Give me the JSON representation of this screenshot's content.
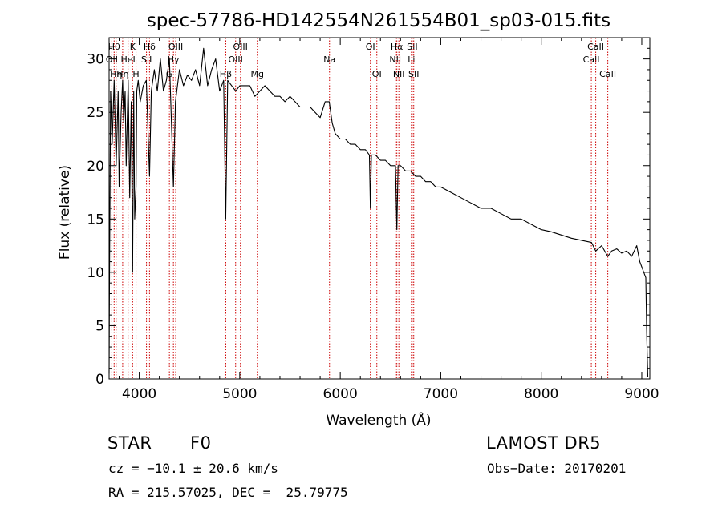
{
  "chart_data": {
    "type": "line",
    "title": "spec-57786-HD142554N261554B01_sp03-015.fits",
    "xlabel": "Wavelength (Å)",
    "ylabel": "Flux (relative)",
    "xlim": [
      3700,
      9080
    ],
    "ylim": [
      0,
      32
    ],
    "x_ticks": [
      4000,
      5000,
      6000,
      7000,
      8000,
      9000
    ],
    "y_ticks": [
      0,
      5,
      10,
      15,
      20,
      25,
      30
    ],
    "series": [
      {
        "color": "#000000",
        "x": [
          3700,
          3705,
          3715,
          3730,
          3750,
          3770,
          3790,
          3800,
          3820,
          3835,
          3845,
          3860,
          3870,
          3890,
          3905,
          3920,
          3934,
          3945,
          3955,
          3968,
          3975,
          3990,
          4010,
          4040,
          4070,
          4102,
          4120,
          4150,
          4180,
          4210,
          4240,
          4270,
          4300,
          4340,
          4360,
          4400,
          4440,
          4480,
          4520,
          4560,
          4600,
          4640,
          4680,
          4720,
          4760,
          4800,
          4840,
          4861,
          4880,
          4920,
          4960,
          5000,
          5050,
          5100,
          5150,
          5200,
          5250,
          5300,
          5350,
          5400,
          5450,
          5500,
          5550,
          5600,
          5650,
          5700,
          5750,
          5800,
          5850,
          5890,
          5920,
          5950,
          6000,
          6050,
          6100,
          6150,
          6200,
          6250,
          6290,
          6300,
          6310,
          6350,
          6400,
          6450,
          6500,
          6550,
          6563,
          6575,
          6600,
          6650,
          6700,
          6750,
          6800,
          6850,
          6900,
          6950,
          7000,
          7100,
          7200,
          7300,
          7400,
          7500,
          7600,
          7700,
          7800,
          7900,
          8000,
          8100,
          8200,
          8300,
          8400,
          8500,
          8542,
          8600,
          8662,
          8700,
          8750,
          8800,
          8850,
          8900,
          8950,
          8980,
          9000,
          9020,
          9040,
          9050,
          9060
        ],
        "y": [
          0.5,
          11,
          27,
          22,
          28,
          20,
          27,
          18,
          25,
          28,
          24,
          27,
          20,
          28,
          17,
          26,
          10,
          27,
          15,
          18,
          27,
          28,
          26,
          27.5,
          28,
          19,
          27,
          29,
          27,
          30,
          27,
          28,
          30,
          18,
          26,
          29,
          27.5,
          28.5,
          28,
          29,
          27.5,
          31,
          27.5,
          29,
          30,
          27,
          28,
          15,
          28,
          27.5,
          27,
          27.5,
          27.5,
          27.5,
          26.5,
          27,
          27.5,
          27,
          26.5,
          26.5,
          26,
          26.5,
          26,
          25.5,
          25.5,
          25.5,
          25,
          24.5,
          26,
          26,
          24,
          23,
          22.5,
          22.5,
          22,
          22,
          21.5,
          21.5,
          21,
          16,
          21,
          21,
          20.5,
          20.5,
          20,
          20,
          14,
          20,
          20,
          19.5,
          19.5,
          19,
          19,
          18.5,
          18.5,
          18,
          18,
          17.5,
          17,
          16.5,
          16,
          16,
          15.5,
          15,
          15,
          14.5,
          14,
          13.8,
          13.5,
          13.2,
          13,
          12.8,
          12,
          12.5,
          11.5,
          12,
          12.2,
          11.8,
          12,
          11.5,
          12.5,
          11,
          10.5,
          10,
          9.5,
          4,
          0.2
        ]
      }
    ],
    "lines": [
      {
        "x": 3727,
        "label": "OII",
        "row": 1
      },
      {
        "x": 3750,
        "label": "Hθ",
        "row": 0
      },
      {
        "x": 3770,
        "label": "Hη",
        "row": 2
      },
      {
        "x": 3835,
        "label": "Hη",
        "row": 2
      },
      {
        "x": 3889,
        "label": "HeI",
        "row": 1
      },
      {
        "x": 3934,
        "label": "K",
        "row": 0
      },
      {
        "x": 3968,
        "label": "H",
        "row": 2
      },
      {
        "x": 4072,
        "label": "SII",
        "row": 1
      },
      {
        "x": 4102,
        "label": "Hδ",
        "row": 0
      },
      {
        "x": 4300,
        "label": "G",
        "row": 2
      },
      {
        "x": 4340,
        "label": "Hγ",
        "row": 1
      },
      {
        "x": 4363,
        "label": "OIII",
        "row": 0
      },
      {
        "x": 4861,
        "label": "Hβ",
        "row": 2
      },
      {
        "x": 4959,
        "label": "OIII",
        "row": 1
      },
      {
        "x": 5007,
        "label": "OIII",
        "row": 0
      },
      {
        "x": 5175,
        "label": "Mg",
        "row": 2
      },
      {
        "x": 5893,
        "label": "Na",
        "row": 1
      },
      {
        "x": 6300,
        "label": "OI",
        "row": 0
      },
      {
        "x": 6364,
        "label": "OI",
        "row": 2
      },
      {
        "x": 6548,
        "label": "NII",
        "row": 1
      },
      {
        "x": 6563,
        "label": "Hα",
        "row": 0
      },
      {
        "x": 6583,
        "label": "NII",
        "row": 2
      },
      {
        "x": 6708,
        "label": "Li",
        "row": 1
      },
      {
        "x": 6716,
        "label": "SII",
        "row": 0
      },
      {
        "x": 6731,
        "label": "SII",
        "row": 2
      },
      {
        "x": 8498,
        "label": "CaII",
        "row": 1
      },
      {
        "x": 8542,
        "label": "CaII",
        "row": 0
      },
      {
        "x": 8662,
        "label": "CaII",
        "row": 2
      }
    ],
    "grid": false,
    "legend": "none"
  },
  "info": {
    "class_label": "STAR",
    "subclass": "F0",
    "survey": "LAMOST DR5",
    "cz": "cz = −10.1 ± 20.6 km/s",
    "obs_date": "Obs−Date: 20170201",
    "coords": "RA = 215.57025, DEC =  25.79775"
  }
}
